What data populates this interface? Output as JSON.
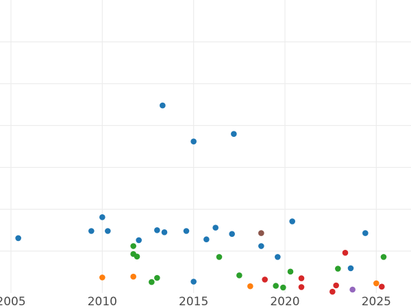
{
  "chart_data": {
    "type": "scatter",
    "title": "",
    "xlabel": "",
    "ylabel": "",
    "grid": true,
    "legend": "none",
    "xlim": [
      2004.4,
      2026.9
    ],
    "ylim": [
      0,
      7.0
    ],
    "x_ticks": [
      2005,
      2010,
      2015,
      2020,
      2025
    ],
    "x_tick_labels": [
      "2005",
      "2010",
      "2015",
      "2020",
      "2025"
    ],
    "y_gridlines": [
      1,
      2,
      3,
      4,
      5,
      6
    ],
    "series": [
      {
        "color": "#1f77b4",
        "points": [
          [
            2005.4,
            1.31
          ],
          [
            2009.4,
            1.48
          ],
          [
            2010.0,
            1.81
          ],
          [
            2010.3,
            1.48
          ],
          [
            2012.0,
            1.26
          ],
          [
            2013.0,
            1.5
          ],
          [
            2013.3,
            4.48
          ],
          [
            2013.4,
            1.45
          ],
          [
            2014.6,
            1.48
          ],
          [
            2015.0,
            3.62
          ],
          [
            2015.0,
            0.27
          ],
          [
            2015.7,
            1.28
          ],
          [
            2016.2,
            1.56
          ],
          [
            2017.1,
            1.41
          ],
          [
            2017.2,
            3.8
          ],
          [
            2018.7,
            1.12
          ],
          [
            2019.6,
            0.86
          ],
          [
            2020.4,
            1.71
          ],
          [
            2023.6,
            0.59
          ],
          [
            2024.4,
            1.43
          ]
        ]
      },
      {
        "color": "#ff7f0e",
        "points": [
          [
            2010.0,
            0.37
          ],
          [
            2011.7,
            0.39
          ],
          [
            2018.1,
            0.16
          ],
          [
            2025.0,
            0.23
          ]
        ]
      },
      {
        "color": "#2ca02c",
        "points": [
          [
            2011.7,
            1.12
          ],
          [
            2011.7,
            0.93
          ],
          [
            2011.9,
            0.87
          ],
          [
            2012.7,
            0.26
          ],
          [
            2013.0,
            0.36
          ],
          [
            2016.4,
            0.86
          ],
          [
            2017.5,
            0.42
          ],
          [
            2019.5,
            0.17
          ],
          [
            2019.9,
            0.13
          ],
          [
            2020.3,
            0.51
          ],
          [
            2022.9,
            0.58
          ],
          [
            2025.4,
            0.86
          ]
        ]
      },
      {
        "color": "#d62728",
        "points": [
          [
            2018.9,
            0.32
          ],
          [
            2020.9,
            0.14
          ],
          [
            2020.9,
            0.35
          ],
          [
            2022.6,
            0.03
          ],
          [
            2022.8,
            0.18
          ],
          [
            2023.3,
            0.96
          ],
          [
            2025.3,
            0.15
          ]
        ]
      },
      {
        "color": "#9467bd",
        "points": [
          [
            2023.7,
            0.08
          ]
        ]
      },
      {
        "color": "#8c564b",
        "points": [
          [
            2018.7,
            1.43
          ]
        ]
      }
    ]
  }
}
